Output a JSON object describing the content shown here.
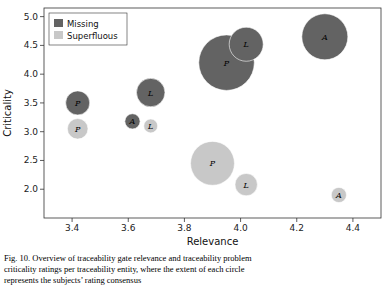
{
  "chart_data": {
    "type": "bubble",
    "xlabel": "Relevance",
    "ylabel": "Criticality",
    "series": [
      {
        "name": "Missing",
        "color": "#636363",
        "labels": [
          "P",
          "L",
          "A",
          "P",
          "L",
          "A"
        ],
        "x": [
          3.42,
          3.68,
          3.615,
          3.95,
          4.02,
          4.3
        ],
        "values": [
          3.5,
          3.68,
          3.18,
          4.2,
          4.52,
          4.65
        ],
        "sizes": [
          300,
          420,
          120,
          1600,
          600,
          1100
        ]
      },
      {
        "name": "Superfluous",
        "color": "#c8c8c8",
        "labels": [
          "P",
          "L",
          "P",
          "L",
          "A"
        ],
        "x": [
          3.42,
          3.68,
          3.9,
          4.02,
          4.35
        ],
        "values": [
          3.05,
          3.1,
          2.45,
          2.08,
          1.9
        ],
        "sizes": [
          220,
          100,
          1000,
          260,
          120
        ]
      }
    ],
    "xlim": [
      3.3,
      4.5
    ],
    "ylim": [
      1.5,
      5.15
    ],
    "xticks": [
      3.4,
      3.6,
      3.8,
      {
        "value": 4.0,
        "label": "4.0"
      },
      4.2,
      4.4
    ],
    "yticks": [
      {
        "value": 2.0,
        "label": "2.0"
      },
      2.5,
      {
        "value": 3.0,
        "label": "3.0"
      },
      3.5,
      {
        "value": 4.0,
        "label": "4.0"
      },
      4.5,
      {
        "value": 5.0,
        "label": "5.0"
      }
    ],
    "legend": "upper left",
    "background_color": "#ffffff",
    "caption": [
      "Fig. 10.   Overview of traceability gate relevance and traceability problem",
      "criticality ratings per traceability entity, where the extent of each circle",
      "represents the subjects’ rating consensus"
    ]
  }
}
